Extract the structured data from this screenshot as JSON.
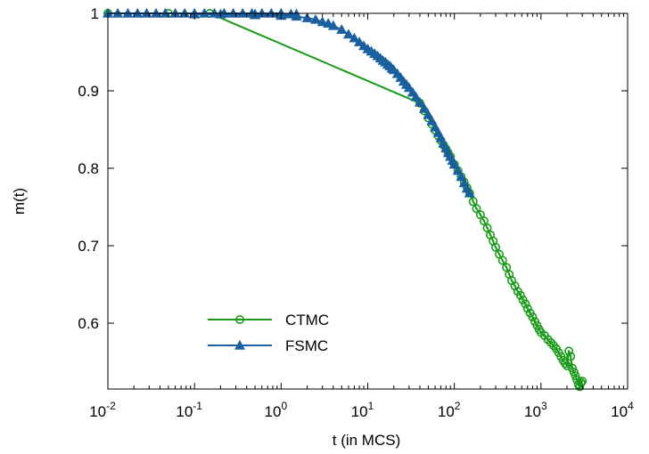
{
  "chart_data": {
    "type": "line",
    "title": "",
    "xlabel": "t (in MCS)",
    "ylabel": "m(t)",
    "xscale": "log",
    "xlim": [
      0.01,
      10000
    ],
    "ylim": [
      0.515,
      1.0
    ],
    "x_ticks": [
      {
        "base": "10",
        "exp": "-2",
        "value": 0.01
      },
      {
        "base": "10",
        "exp": "-1",
        "value": 0.1
      },
      {
        "base": "10",
        "exp": "0",
        "value": 1
      },
      {
        "base": "10",
        "exp": "1",
        "value": 10
      },
      {
        "base": "10",
        "exp": "2",
        "value": 100
      },
      {
        "base": "10",
        "exp": "3",
        "value": 1000
      },
      {
        "base": "10",
        "exp": "4",
        "value": 10000
      }
    ],
    "y_ticks": [
      "0.6",
      "0.7",
      "0.8",
      "0.9",
      "1"
    ],
    "grid": false,
    "legend_position": "bottom-left",
    "series": [
      {
        "name": "CTMC",
        "color": "#1a9c1a",
        "marker": "circle",
        "points": [
          [
            0.01,
            1.0
          ],
          [
            0.05,
            1.0
          ],
          [
            0.15,
            1.0
          ],
          [
            40,
            0.884
          ],
          [
            45,
            0.874
          ],
          [
            50,
            0.865
          ],
          [
            55,
            0.857
          ],
          [
            60,
            0.849
          ],
          [
            65,
            0.842
          ],
          [
            70,
            0.836
          ],
          [
            75,
            0.83
          ],
          [
            80,
            0.825
          ],
          [
            85,
            0.82
          ],
          [
            90,
            0.815
          ],
          [
            100,
            0.805
          ],
          [
            110,
            0.797
          ],
          [
            120,
            0.789
          ],
          [
            130,
            0.782
          ],
          [
            140,
            0.775
          ],
          [
            150,
            0.768
          ],
          [
            165,
            0.757
          ],
          [
            180,
            0.748
          ],
          [
            200,
            0.74
          ],
          [
            220,
            0.732
          ],
          [
            240,
            0.723
          ],
          [
            260,
            0.714
          ],
          [
            280,
            0.706
          ],
          [
            300,
            0.698
          ],
          [
            330,
            0.689
          ],
          [
            360,
            0.681
          ],
          [
            400,
            0.672
          ],
          [
            430,
            0.663
          ],
          [
            460,
            0.655
          ],
          [
            500,
            0.648
          ],
          [
            540,
            0.641
          ],
          [
            580,
            0.636
          ],
          [
            620,
            0.63
          ],
          [
            660,
            0.625
          ],
          [
            700,
            0.619
          ],
          [
            750,
            0.613
          ],
          [
            800,
            0.608
          ],
          [
            850,
            0.602
          ],
          [
            900,
            0.597
          ],
          [
            950,
            0.592
          ],
          [
            1000,
            0.588
          ],
          [
            1100,
            0.584
          ],
          [
            1200,
            0.579
          ],
          [
            1300,
            0.575
          ],
          [
            1400,
            0.571
          ],
          [
            1500,
            0.567
          ],
          [
            1600,
            0.562
          ],
          [
            1700,
            0.557
          ],
          [
            1800,
            0.552
          ],
          [
            1900,
            0.548
          ],
          [
            2000,
            0.545
          ],
          [
            2100,
            0.564
          ],
          [
            2200,
            0.557
          ],
          [
            2300,
            0.542
          ],
          [
            2400,
            0.537
          ],
          [
            2500,
            0.532
          ],
          [
            2600,
            0.527
          ],
          [
            2700,
            0.521
          ],
          [
            2800,
            0.518
          ],
          [
            2900,
            0.523
          ],
          [
            3000,
            0.525
          ]
        ]
      },
      {
        "name": "FSMC",
        "color": "#1a5fa0",
        "marker": "triangle",
        "points": [
          [
            0.01,
            1.0
          ],
          [
            0.013,
            1.0
          ],
          [
            0.017,
            1.0
          ],
          [
            0.022,
            1.0
          ],
          [
            0.028,
            1.0
          ],
          [
            0.036,
            1.0
          ],
          [
            0.046,
            1.0
          ],
          [
            0.06,
            1.0
          ],
          [
            0.077,
            1.0
          ],
          [
            0.1,
            1.0
          ],
          [
            0.13,
            1.0
          ],
          [
            0.17,
            1.0
          ],
          [
            0.22,
            1.0
          ],
          [
            0.28,
            1.0
          ],
          [
            0.36,
            1.0
          ],
          [
            0.46,
            1.0
          ],
          [
            0.6,
            1.0
          ],
          [
            0.77,
            1.0
          ],
          [
            1.0,
            1.0
          ],
          [
            1.3,
            0.999
          ],
          [
            1.5,
            0.999
          ],
          [
            1.0,
            0.999
          ],
          [
            0.5,
            0.999
          ],
          [
            0.2,
            0.999
          ],
          [
            0.1,
            0.999
          ],
          [
            0.5,
            0.998
          ],
          [
            1.0,
            0.997
          ],
          [
            1.5,
            0.996
          ],
          [
            2.0,
            0.994
          ],
          [
            2.5,
            0.992
          ],
          [
            3.0,
            0.989
          ],
          [
            3.5,
            0.987
          ],
          [
            4.0,
            0.984
          ],
          [
            5.0,
            0.979
          ],
          [
            6.0,
            0.973
          ],
          [
            7.0,
            0.968
          ],
          [
            8.0,
            0.963
          ],
          [
            9.0,
            0.958
          ],
          [
            10,
            0.954
          ],
          [
            11,
            0.951
          ],
          [
            12,
            0.948
          ],
          [
            13,
            0.945
          ],
          [
            14,
            0.942
          ],
          [
            15,
            0.939
          ],
          [
            16,
            0.937
          ],
          [
            17,
            0.934
          ],
          [
            18,
            0.932
          ],
          [
            19,
            0.929
          ],
          [
            20,
            0.927
          ],
          [
            22,
            0.922
          ],
          [
            24,
            0.917
          ],
          [
            26,
            0.912
          ],
          [
            28,
            0.908
          ],
          [
            30,
            0.904
          ],
          [
            33,
            0.898
          ],
          [
            36,
            0.892
          ],
          [
            40,
            0.885
          ],
          [
            45,
            0.877
          ],
          [
            50,
            0.869
          ],
          [
            55,
            0.861
          ],
          [
            60,
            0.853
          ],
          [
            65,
            0.846
          ],
          [
            70,
            0.839
          ],
          [
            75,
            0.832
          ],
          [
            80,
            0.826
          ],
          [
            85,
            0.82
          ],
          [
            90,
            0.815
          ],
          [
            95,
            0.81
          ],
          [
            100,
            0.805
          ],
          [
            110,
            0.797
          ],
          [
            120,
            0.789
          ],
          [
            130,
            0.781
          ],
          [
            140,
            0.774
          ],
          [
            150,
            0.768
          ]
        ]
      }
    ]
  }
}
